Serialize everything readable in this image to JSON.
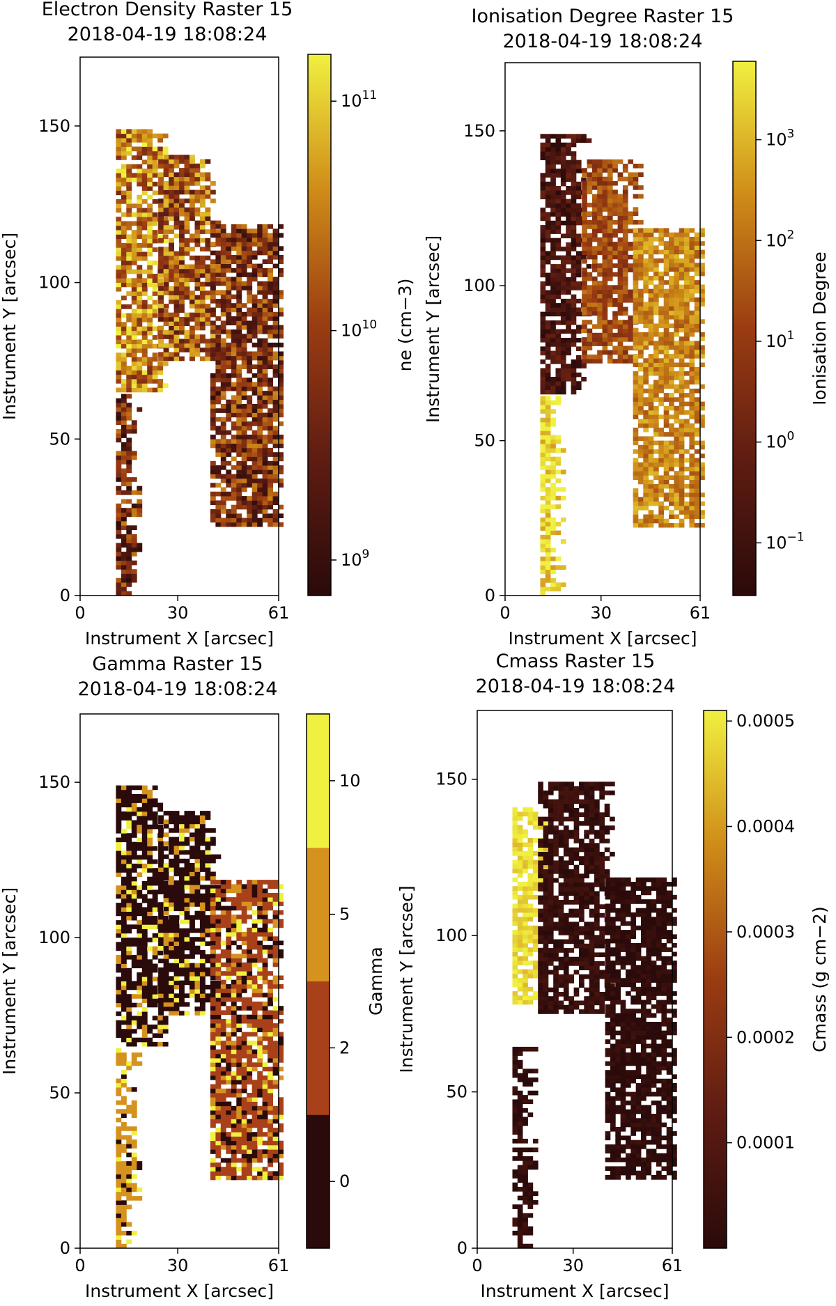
{
  "chart_data": [
    {
      "type": "heatmap",
      "title": "Electron Density Raster 15",
      "subtitle": "2018-04-19 18:08:24",
      "xlabel": "Instrument X [arcsec]",
      "ylabel": "Instrument Y [arcsec]",
      "xlim": [
        0,
        61
      ],
      "ylim": [
        0,
        172
      ],
      "xticks": [
        0,
        30,
        61
      ],
      "yticks": [
        0,
        50,
        100,
        150
      ],
      "colorbar": {
        "label": "n$_e$ (cm$^{-3}$)",
        "label_text": "ne (cm−3)",
        "scale": "log",
        "range": [
          700000000.0,
          160000000000.0
        ],
        "ticks": [
          {
            "value": 1000000000.0,
            "base": "10",
            "exp": "9"
          },
          {
            "value": 10000000000.0,
            "base": "10",
            "exp": "10"
          },
          {
            "value": 100000000000.0,
            "base": "10",
            "exp": "11"
          }
        ]
      },
      "regions": [
        {
          "x": [
            11,
            24
          ],
          "y": [
            65,
            148
          ],
          "value": 30000000000.0
        },
        {
          "x": [
            24,
            40
          ],
          "y": [
            75,
            140
          ],
          "value": 15000000000.0
        },
        {
          "x": [
            40,
            62
          ],
          "y": [
            22,
            118
          ],
          "value": 6000000000.0
        },
        {
          "x": [
            11,
            16
          ],
          "y": [
            0,
            64
          ],
          "value": 5000000000.0
        }
      ],
      "colormap": [
        "#2a0a0a",
        "#5e1c12",
        "#9a3c12",
        "#cf8c18",
        "#f0f040"
      ]
    },
    {
      "type": "heatmap",
      "title": "Ionisation Degree Raster 15",
      "subtitle": "2018-04-19 18:08:24",
      "xlabel": "Instrument X [arcsec]",
      "ylabel": "Instrument Y [arcsec]",
      "xlim": [
        0,
        61
      ],
      "ylim": [
        0,
        172
      ],
      "xticks": [
        0,
        30,
        61
      ],
      "yticks": [
        0,
        50,
        100,
        150
      ],
      "colorbar": {
        "label": "Ionisation Degree",
        "scale": "log",
        "range": [
          0.03,
          6000
        ],
        "ticks": [
          {
            "value": 0.1,
            "base": "10",
            "exp": "−1"
          },
          {
            "value": 1,
            "base": "10",
            "exp": "0"
          },
          {
            "value": 10,
            "base": "10",
            "exp": "1"
          },
          {
            "value": 100,
            "base": "10",
            "exp": "2"
          },
          {
            "value": 1000,
            "base": "10",
            "exp": "3"
          }
        ]
      },
      "regions": [
        {
          "x": [
            11,
            24
          ],
          "y": [
            65,
            148
          ],
          "value": 0.2
        },
        {
          "x": [
            24,
            40
          ],
          "y": [
            75,
            140
          ],
          "value": 20
        },
        {
          "x": [
            40,
            62
          ],
          "y": [
            22,
            118
          ],
          "value": 200
        },
        {
          "x": [
            11,
            16
          ],
          "y": [
            0,
            64
          ],
          "value": 3000
        }
      ],
      "colormap": [
        "#2a0a0a",
        "#5e1c12",
        "#9a3c12",
        "#cf8c18",
        "#f0f040"
      ]
    },
    {
      "type": "heatmap",
      "title": "Gamma Raster 15",
      "subtitle": "2018-04-19 18:08:24",
      "xlabel": "Instrument X [arcsec]",
      "ylabel": "Instrument Y [arcsec]",
      "xlim": [
        0,
        61
      ],
      "ylim": [
        0,
        172
      ],
      "xticks": [
        0,
        30,
        61
      ],
      "yticks": [
        0,
        50,
        100,
        150
      ],
      "colorbar": {
        "label": "Gamma",
        "scale": "discrete",
        "ticks": [
          {
            "value": 0,
            "label": "0"
          },
          {
            "value": 2,
            "label": "2"
          },
          {
            "value": 5,
            "label": "5"
          },
          {
            "value": 10,
            "label": "10"
          }
        ],
        "bands": [
          "#2a0a0a",
          "#a8411a",
          "#d5921e",
          "#f0f040"
        ]
      },
      "regions": [
        {
          "x": [
            11,
            24
          ],
          "y": [
            65,
            148
          ],
          "value": 0
        },
        {
          "x": [
            24,
            40
          ],
          "y": [
            75,
            140
          ],
          "value": 0
        },
        {
          "x": [
            40,
            62
          ],
          "y": [
            22,
            118
          ],
          "value": 2
        },
        {
          "x": [
            11,
            16
          ],
          "y": [
            0,
            64
          ],
          "value": 5
        }
      ]
    },
    {
      "type": "heatmap",
      "title": "Cmass Raster 15",
      "subtitle": "2018-04-19 18:08:24",
      "xlabel": "Instrument X [arcsec]",
      "ylabel": "Instrument Y [arcsec]",
      "xlim": [
        0,
        61
      ],
      "ylim": [
        0,
        172
      ],
      "xticks": [
        0,
        30,
        61
      ],
      "yticks": [
        0,
        50,
        100,
        150
      ],
      "colorbar": {
        "label": "Cmass (g cm$^{-2}$)",
        "label_text": "Cmass (g cm−2)",
        "scale": "linear",
        "range": [
          0,
          0.00051
        ],
        "ticks": [
          {
            "value": 0.0001,
            "label": "0.0001"
          },
          {
            "value": 0.0002,
            "label": "0.0002"
          },
          {
            "value": 0.0003,
            "label": "0.0003"
          },
          {
            "value": 0.0004,
            "label": "0.0004"
          },
          {
            "value": 0.0005,
            "label": "0.0005"
          }
        ]
      },
      "regions": [
        {
          "x": [
            11,
            19
          ],
          "y": [
            78,
            140
          ],
          "value": 0.00048
        },
        {
          "x": [
            19,
            40
          ],
          "y": [
            75,
            148
          ],
          "value": 3e-05
        },
        {
          "x": [
            40,
            62
          ],
          "y": [
            22,
            118
          ],
          "value": 1e-05
        },
        {
          "x": [
            11,
            16
          ],
          "y": [
            0,
            64
          ],
          "value": 2e-05
        }
      ],
      "colormap": [
        "#2a0a0a",
        "#5e1c12",
        "#9a3c12",
        "#cf8c18",
        "#f0f040"
      ]
    }
  ]
}
